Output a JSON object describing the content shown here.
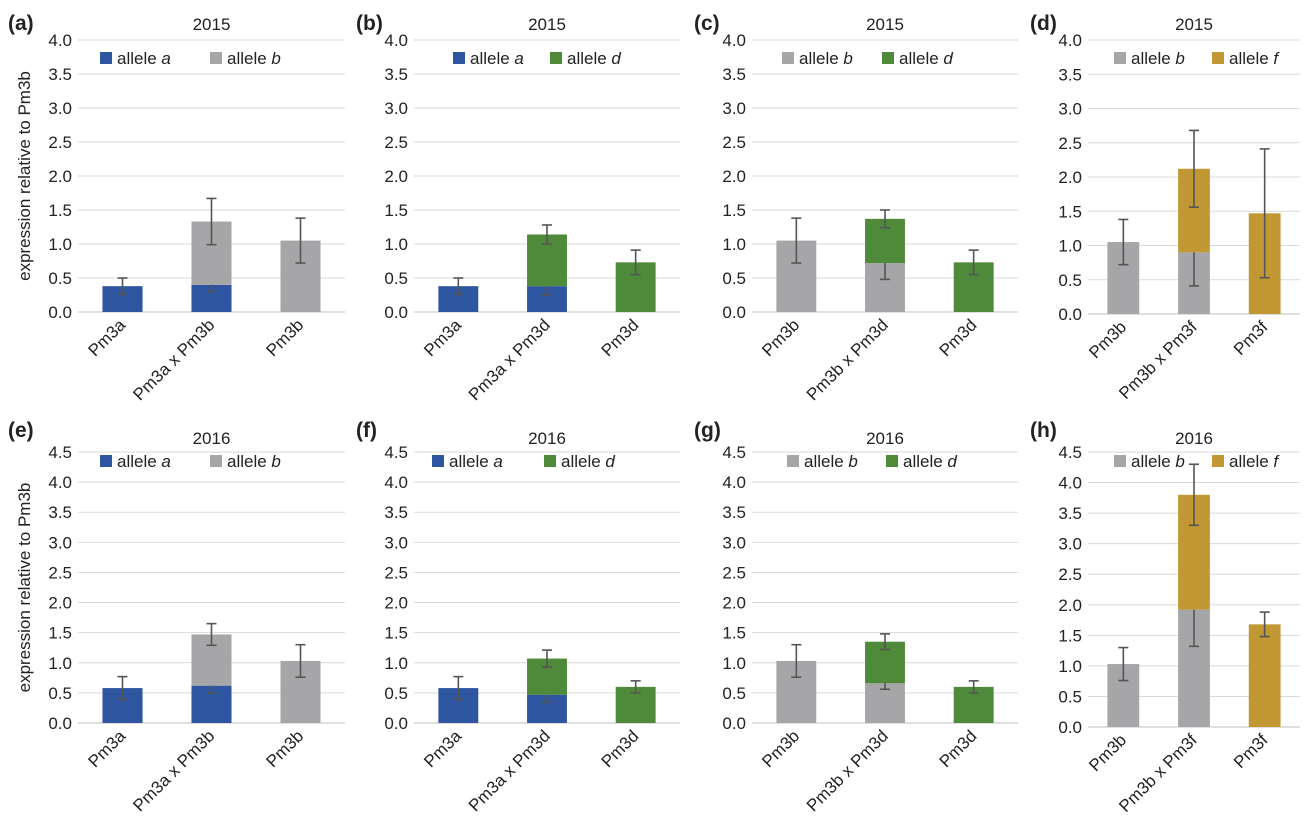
{
  "colors": {
    "allele_a": "#2e56a0",
    "allele_b": "#a6a6a8",
    "allele_d": "#4f8a3a",
    "allele_f": "#c19834",
    "grid": "#d9d9d9",
    "axis": "#bfbfbf",
    "error_bar": "#555555"
  },
  "chart_data": [
    {
      "type": "bar",
      "stacked": true,
      "label": "(a)",
      "title": "2015",
      "ylabel": "expression relative to Pm3b",
      "ylim": [
        0,
        4.0
      ],
      "yticks": [
        "0.0",
        "0.5",
        "1.0",
        "1.5",
        "2.0",
        "2.5",
        "3.0",
        "3.5",
        "4.0"
      ],
      "categories": [
        "Pm3a",
        "Pm3a x Pm3b",
        "Pm3b"
      ],
      "series": [
        {
          "name": "allele a",
          "legend_prefix": "allele ",
          "legend_italic": "a",
          "color_key": "allele_a",
          "values": [
            0.38,
            0.4,
            0
          ],
          "errors": [
            0.12,
            0.1,
            null
          ]
        },
        {
          "name": "allele b",
          "legend_prefix": "allele ",
          "legend_italic": "b",
          "color_key": "allele_b",
          "values": [
            0,
            0.93,
            1.05
          ],
          "errors": [
            null,
            0.34,
            0.33
          ]
        }
      ]
    },
    {
      "type": "bar",
      "stacked": true,
      "label": "(b)",
      "title": "2015",
      "ylim": [
        0,
        4.0
      ],
      "yticks": [
        "0.0",
        "0.5",
        "1.0",
        "1.5",
        "2.0",
        "2.5",
        "3.0",
        "3.5",
        "4.0"
      ],
      "categories": [
        "Pm3a",
        "Pm3a x Pm3d",
        "Pm3d"
      ],
      "series": [
        {
          "name": "allele a",
          "legend_prefix": "allele ",
          "legend_italic": "a",
          "color_key": "allele_a",
          "values": [
            0.38,
            0.38,
            0
          ],
          "errors": [
            0.12,
            0.13,
            null
          ]
        },
        {
          "name": "allele d",
          "legend_prefix": "allele ",
          "legend_italic": "d",
          "color_key": "allele_d",
          "values": [
            0,
            0.76,
            0.73
          ],
          "errors": [
            null,
            0.14,
            0.18
          ]
        }
      ]
    },
    {
      "type": "bar",
      "stacked": true,
      "label": "(c)",
      "title": "2015",
      "ylim": [
        0,
        4.0
      ],
      "yticks": [
        "0.0",
        "0.5",
        "1.0",
        "1.5",
        "2.0",
        "2.5",
        "3.0",
        "3.5",
        "4.0"
      ],
      "categories": [
        "Pm3b",
        "Pm3b x Pm3d",
        "Pm3d"
      ],
      "series": [
        {
          "name": "allele b",
          "legend_prefix": "allele ",
          "legend_italic": "b",
          "color_key": "allele_b",
          "values": [
            1.05,
            0.72,
            0
          ],
          "errors": [
            0.33,
            0.24,
            null
          ]
        },
        {
          "name": "allele d",
          "legend_prefix": "allele ",
          "legend_italic": "d",
          "color_key": "allele_d",
          "values": [
            0,
            0.65,
            0.73
          ],
          "errors": [
            null,
            0.13,
            0.18
          ]
        }
      ]
    },
    {
      "type": "bar",
      "stacked": true,
      "label": "(d)",
      "title": "2015",
      "ylim": [
        0,
        4.0
      ],
      "yticks": [
        "0.0",
        "0.5",
        "1.0",
        "1.5",
        "2.0",
        "2.5",
        "3.0",
        "3.5",
        "4.0"
      ],
      "categories": [
        "Pm3b",
        "Pm3b x Pm3f",
        "Pm3f"
      ],
      "series": [
        {
          "name": "allele b",
          "legend_prefix": "allele ",
          "legend_italic": "b",
          "color_key": "allele_b",
          "values": [
            1.05,
            0.9,
            0
          ],
          "errors": [
            0.33,
            0.49,
            null
          ]
        },
        {
          "name": "allele f",
          "legend_prefix": "allele ",
          "legend_italic": "f",
          "color_key": "allele_f",
          "values": [
            0,
            1.22,
            1.47
          ],
          "errors": [
            null,
            0.56,
            0.94
          ]
        }
      ]
    },
    {
      "type": "bar",
      "stacked": true,
      "label": "(e)",
      "title": "2016",
      "ylabel": "expression relative to Pm3b",
      "ylim": [
        0,
        4.5
      ],
      "yticks": [
        "0.0",
        "0.5",
        "1.0",
        "1.5",
        "2.0",
        "2.5",
        "3.0",
        "3.5",
        "4.0",
        "4.5"
      ],
      "categories": [
        "Pm3a",
        "Pm3a x Pm3b",
        "Pm3b"
      ],
      "series": [
        {
          "name": "allele a",
          "legend_prefix": "allele ",
          "legend_italic": "a",
          "color_key": "allele_a",
          "values": [
            0.58,
            0.62,
            0
          ],
          "errors": [
            0.19,
            0.12,
            null
          ]
        },
        {
          "name": "allele b",
          "legend_prefix": "allele ",
          "legend_italic": "b",
          "color_key": "allele_b",
          "values": [
            0,
            0.85,
            1.03
          ],
          "errors": [
            null,
            0.18,
            0.27
          ]
        }
      ]
    },
    {
      "type": "bar",
      "stacked": true,
      "label": "(f)",
      "title": "2016",
      "ylim": [
        0,
        4.5
      ],
      "yticks": [
        "0.0",
        "0.5",
        "1.0",
        "1.5",
        "2.0",
        "2.5",
        "3.0",
        "3.5",
        "4.0",
        "4.5"
      ],
      "categories": [
        "Pm3a",
        "Pm3a x Pm3d",
        "Pm3d"
      ],
      "series": [
        {
          "name": "allele a",
          "legend_prefix": "allele ",
          "legend_italic": "a",
          "color_key": "allele_a",
          "values": [
            0.58,
            0.47,
            0
          ],
          "errors": [
            0.19,
            0.12,
            null
          ]
        },
        {
          "name": "allele d",
          "legend_prefix": "allele ",
          "legend_italic": "d",
          "color_key": "allele_d",
          "values": [
            0,
            0.6,
            0.6
          ],
          "errors": [
            null,
            0.14,
            0.1
          ]
        }
      ]
    },
    {
      "type": "bar",
      "stacked": true,
      "label": "(g)",
      "title": "2016",
      "ylim": [
        0,
        4.5
      ],
      "yticks": [
        "0.0",
        "0.5",
        "1.0",
        "1.5",
        "2.0",
        "2.5",
        "3.0",
        "3.5",
        "4.0",
        "4.5"
      ],
      "categories": [
        "Pm3b",
        "Pm3b x Pm3d",
        "Pm3d"
      ],
      "series": [
        {
          "name": "allele b",
          "legend_prefix": "allele ",
          "legend_italic": "b",
          "color_key": "allele_b",
          "values": [
            1.03,
            0.66,
            0
          ],
          "errors": [
            0.27,
            0.1,
            null
          ]
        },
        {
          "name": "allele d",
          "legend_prefix": "allele ",
          "legend_italic": "d",
          "color_key": "allele_d",
          "values": [
            0,
            0.69,
            0.6
          ],
          "errors": [
            null,
            0.13,
            0.1
          ]
        }
      ]
    },
    {
      "type": "bar",
      "stacked": true,
      "label": "(h)",
      "title": "2016",
      "ylim": [
        0,
        4.5
      ],
      "yticks": [
        "0.0",
        "0.5",
        "1.0",
        "1.5",
        "2.0",
        "2.5",
        "3.0",
        "3.5",
        "4.0",
        "4.5"
      ],
      "categories": [
        "Pm3b",
        "Pm3b x Pm3f",
        "Pm3f"
      ],
      "series": [
        {
          "name": "allele b",
          "legend_prefix": "allele ",
          "legend_italic": "b",
          "color_key": "allele_b",
          "values": [
            1.03,
            1.92,
            0
          ],
          "errors": [
            0.27,
            0.6,
            null
          ]
        },
        {
          "name": "allele f",
          "legend_prefix": "allele ",
          "legend_italic": "f",
          "color_key": "allele_f",
          "values": [
            0,
            1.88,
            1.68
          ],
          "errors": [
            null,
            0.5,
            0.2
          ]
        }
      ]
    }
  ]
}
